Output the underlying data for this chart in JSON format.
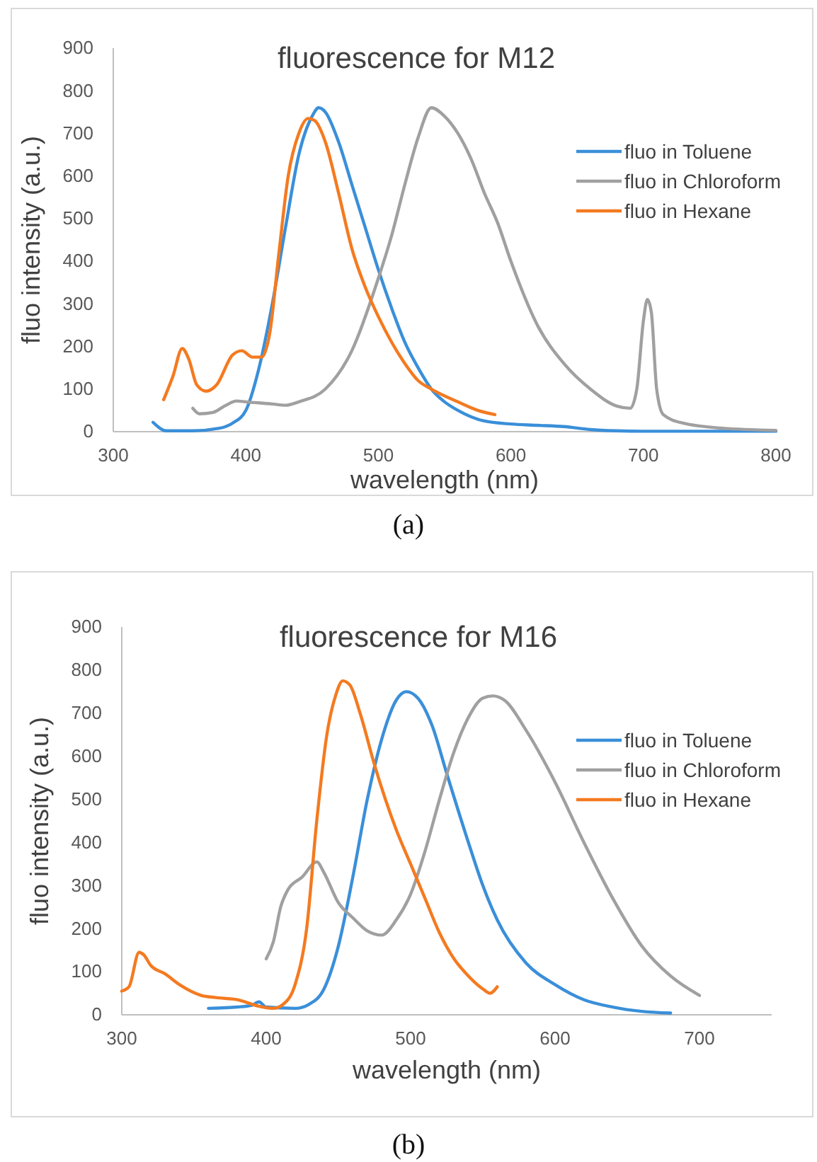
{
  "chart_data": [
    {
      "type": "line",
      "title": "fluorescence for M12",
      "xlabel": "wavelength (nm)",
      "ylabel": "fluo intensity (a.u.)",
      "xlim": [
        300,
        800
      ],
      "xticks": [
        300,
        400,
        500,
        600,
        700,
        800
      ],
      "ylim": [
        0,
        900
      ],
      "yticks": [
        0,
        100,
        200,
        300,
        400,
        500,
        600,
        700,
        800,
        900
      ],
      "grid": false,
      "legend": "right",
      "marker": "none",
      "line_style": "solid",
      "annotations": [
        "(a)"
      ],
      "series": [
        {
          "name": "fluo in Toluene",
          "color": "#3a8fd9",
          "x": [
            330,
            340,
            360,
            380,
            390,
            400,
            410,
            420,
            430,
            440,
            450,
            455,
            460,
            470,
            480,
            490,
            500,
            510,
            520,
            530,
            540,
            550,
            560,
            570,
            580,
            600,
            620,
            640,
            660,
            680,
            700,
            800
          ],
          "values": [
            22,
            2,
            2,
            8,
            20,
            50,
            150,
            300,
            480,
            650,
            740,
            760,
            750,
            680,
            580,
            480,
            380,
            290,
            210,
            150,
            100,
            70,
            50,
            35,
            25,
            18,
            15,
            12,
            5,
            2,
            1,
            1
          ]
        },
        {
          "name": "fluo in Chloroform",
          "color": "#a0a0a0",
          "x": [
            360,
            365,
            375,
            385,
            393,
            400,
            420,
            430,
            440,
            460,
            480,
            500,
            510,
            520,
            530,
            540,
            550,
            560,
            570,
            580,
            590,
            600,
            620,
            640,
            660,
            680,
            690,
            695,
            700,
            703,
            706,
            710,
            715,
            730,
            760,
            800
          ],
          "values": [
            55,
            42,
            45,
            62,
            72,
            70,
            65,
            62,
            70,
            100,
            190,
            360,
            460,
            580,
            690,
            760,
            740,
            700,
            640,
            560,
            490,
            400,
            250,
            160,
            100,
            60,
            55,
            100,
            260,
            310,
            280,
            100,
            40,
            20,
            8,
            3
          ]
        },
        {
          "name": "fluo in Hexane",
          "color": "#f47a20",
          "x": [
            338,
            345,
            352,
            357,
            363,
            370,
            378,
            390,
            397,
            405,
            412,
            418,
            425,
            432,
            440,
            447,
            452,
            460,
            470,
            480,
            490,
            500,
            510,
            520,
            530,
            540,
            560,
            575,
            588
          ],
          "values": [
            75,
            130,
            195,
            170,
            110,
            95,
            110,
            180,
            190,
            175,
            175,
            230,
            420,
            600,
            700,
            735,
            730,
            680,
            560,
            430,
            340,
            270,
            210,
            160,
            120,
            100,
            70,
            50,
            40
          ]
        }
      ]
    },
    {
      "type": "line",
      "title": "fluorescence for M16",
      "xlabel": "wavelength (nm)",
      "ylabel": "fluo intensity (a.u.)",
      "xlim": [
        300,
        750
      ],
      "xticks": [
        300,
        400,
        500,
        600,
        700
      ],
      "ylim": [
        0,
        900
      ],
      "yticks": [
        0,
        100,
        200,
        300,
        400,
        500,
        600,
        700,
        800,
        900
      ],
      "grid": false,
      "legend": "right",
      "marker": "none",
      "line_style": "solid",
      "annotations": [
        "(b)"
      ],
      "series": [
        {
          "name": "fluo in Toluene",
          "color": "#3a8fd9",
          "x": [
            360,
            380,
            390,
            395,
            400,
            420,
            430,
            440,
            450,
            460,
            470,
            480,
            490,
            497,
            505,
            515,
            525,
            540,
            550,
            560,
            580,
            600,
            620,
            640,
            660,
            680
          ],
          "values": [
            15,
            18,
            22,
            30,
            18,
            15,
            25,
            60,
            160,
            320,
            500,
            640,
            730,
            750,
            735,
            670,
            560,
            400,
            300,
            220,
            120,
            70,
            35,
            18,
            8,
            4
          ]
        },
        {
          "name": "fluo in Chloroform",
          "color": "#a0a0a0",
          "x": [
            400,
            405,
            410,
            415,
            425,
            435,
            440,
            450,
            460,
            470,
            480,
            490,
            500,
            510,
            520,
            530,
            540,
            550,
            557,
            565,
            580,
            600,
            620,
            640,
            660,
            680,
            700
          ],
          "values": [
            130,
            170,
            250,
            290,
            320,
            355,
            330,
            260,
            225,
            195,
            185,
            220,
            280,
            380,
            500,
            610,
            690,
            735,
            740,
            730,
            660,
            540,
            400,
            270,
            160,
            90,
            45
          ]
        },
        {
          "name": "fluo in Hexane",
          "color": "#f47a20",
          "x": [
            300,
            305,
            312,
            315,
            320,
            330,
            340,
            355,
            365,
            380,
            395,
            405,
            412,
            420,
            428,
            435,
            442,
            448,
            453,
            458,
            465,
            475,
            490,
            500,
            510,
            520,
            530,
            540,
            550,
            555,
            560
          ],
          "values": [
            55,
            65,
            145,
            140,
            115,
            95,
            70,
            45,
            40,
            35,
            20,
            15,
            25,
            70,
            200,
            450,
            650,
            740,
            775,
            765,
            700,
            580,
            430,
            350,
            270,
            190,
            130,
            90,
            60,
            50,
            65
          ]
        }
      ]
    }
  ]
}
